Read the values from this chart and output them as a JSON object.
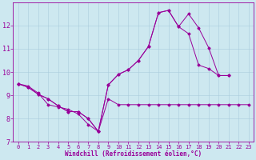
{
  "background_color": "#cde8f0",
  "grid_color": "#aaccdd",
  "line_color": "#990099",
  "xlim": [
    -0.5,
    23.5
  ],
  "ylim": [
    7,
    13
  ],
  "yticks": [
    7,
    8,
    9,
    10,
    11,
    12
  ],
  "xticks": [
    0,
    1,
    2,
    3,
    4,
    5,
    6,
    7,
    8,
    9,
    10,
    11,
    12,
    13,
    14,
    15,
    16,
    17,
    18,
    19,
    20,
    21,
    22,
    23
  ],
  "xlabel": "Windchill (Refroidissement éolien,°C)",
  "xlabel_fontsize": 5.5,
  "tick_fontsize": 5,
  "line1_x": [
    0,
    1,
    2,
    3,
    4,
    5,
    6,
    7,
    8,
    9,
    10,
    11,
    12,
    13,
    14,
    15,
    16,
    17,
    18,
    19,
    20,
    21,
    22,
    23
  ],
  "line1_y": [
    9.5,
    9.4,
    9.1,
    8.6,
    8.5,
    8.4,
    8.2,
    7.75,
    7.45,
    8.85,
    8.6,
    8.6,
    8.6,
    8.6,
    8.6,
    8.6,
    8.6,
    8.6,
    8.6,
    8.6,
    8.6,
    8.6,
    8.6,
    8.6
  ],
  "line2_x": [
    0,
    1,
    2,
    3,
    4,
    5,
    6,
    7,
    8,
    9,
    10,
    11,
    12,
    13,
    14,
    15,
    16,
    17,
    18,
    19,
    20,
    21,
    22,
    23
  ],
  "line2_y": [
    9.5,
    9.35,
    9.05,
    8.85,
    8.55,
    8.3,
    8.3,
    8.0,
    7.45,
    9.45,
    9.9,
    10.1,
    10.5,
    11.1,
    12.55,
    12.65,
    11.95,
    12.5,
    11.9,
    11.05,
    9.85,
    9.85,
    null,
    null
  ],
  "line3_x": [
    0,
    1,
    2,
    3,
    4,
    5,
    6,
    7,
    8,
    9,
    10,
    11,
    12,
    13,
    14,
    15,
    16,
    17,
    18,
    19,
    20,
    21,
    22,
    23
  ],
  "line3_y": [
    9.5,
    9.35,
    9.05,
    8.85,
    8.55,
    8.3,
    8.3,
    8.0,
    7.45,
    9.45,
    9.9,
    10.1,
    10.5,
    11.1,
    12.55,
    12.65,
    11.95,
    11.65,
    10.3,
    10.15,
    9.85,
    9.85,
    null,
    null
  ]
}
